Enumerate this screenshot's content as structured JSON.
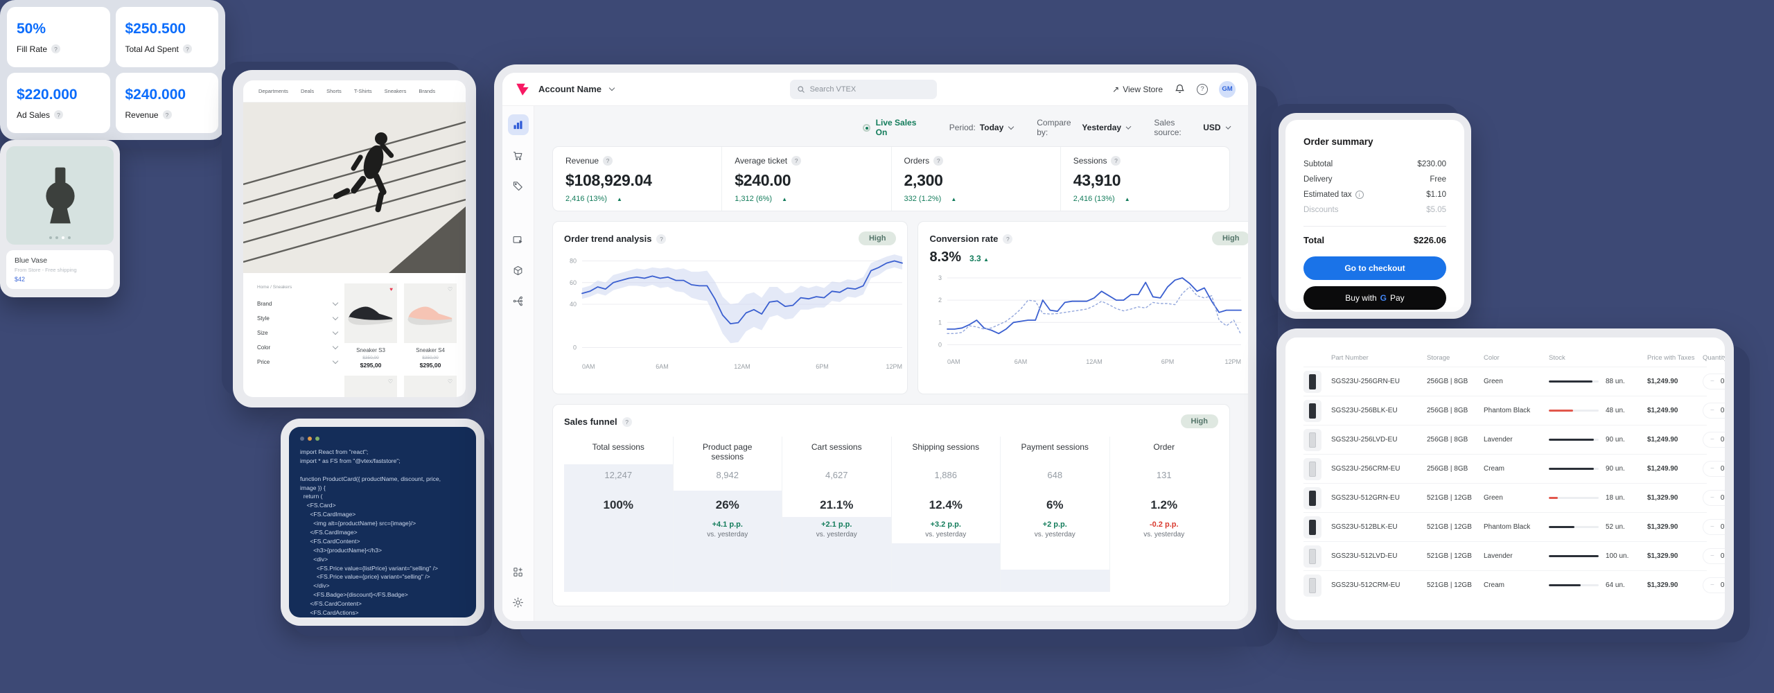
{
  "colors": {
    "background": "#3d4975",
    "accent_blue": "#2f5bd7",
    "chart_blue": "#3a5fd0",
    "band_blue": "#c9d4ef",
    "green": "#137c5b",
    "red": "#d93a2f",
    "brand_pink": "#F71963",
    "ad_blue": "#0b6cfb",
    "checkout_blue": "#1a73e8"
  },
  "storefront_tablet": {
    "nav": [
      "Departments",
      "Deals",
      "Shorts",
      "T-Shirts",
      "Sneakers",
      "Brands"
    ],
    "breadcrumb": "Home / Sneakers",
    "filters": [
      "Brand",
      "Style",
      "Size",
      "Color",
      "Price"
    ],
    "products": [
      {
        "name": "Sneaker S3",
        "list_price": "$350,00",
        "price": "$295,00",
        "shoe_color": "#26282d",
        "liked": true
      },
      {
        "name": "Sneaker S4",
        "list_price": "$350,00",
        "price": "$295,00",
        "shoe_color": "#f6c4b4",
        "liked": false
      },
      {
        "name": "",
        "list_price": "",
        "price": "",
        "shoe_color": "#f4f4f1",
        "liked": false
      },
      {
        "name": "",
        "list_price": "",
        "price": "",
        "shoe_color": "#c6c6c4",
        "liked": false
      }
    ]
  },
  "ad_metrics": {
    "cards": [
      {
        "value": "50%",
        "label": "Fill Rate"
      },
      {
        "value": "$250.500",
        "label": "Total Ad Spent"
      },
      {
        "value": "$220.000",
        "label": "Ad Sales"
      },
      {
        "value": "$240.000",
        "label": "Revenue"
      }
    ]
  },
  "code_panel": {
    "lines": [
      "import React from \"react\";",
      "import * as FS from \"@vtex/faststore\";",
      "",
      "function ProductCard({ productName, discount, price,",
      "image }) {",
      "  return (",
      "    <FS.Card>",
      "      <FS.CardImage>",
      "        <img alt={productName} src={image}/>",
      "      </FS.CardImage>",
      "      <FS.CardContent>",
      "        <h3>{productName}</h3>",
      "        <div>",
      "          <FS.Price value={listPrice} variant=\"selling\" />",
      "          <FS.Price value={price} variant=\"selling\" />",
      "        </div>",
      "        <FS.Badge>{discount}</FS.Badge>",
      "      </FS.CardContent>",
      "      <FS.CardActions>"
    ]
  },
  "dashboard": {
    "topbar": {
      "account_name": "Account Name",
      "search_placeholder": "Search VTEX",
      "view_store": "View Store",
      "view_store_arrow": "↗",
      "avatar": "GM"
    },
    "controls": {
      "live": "Live Sales On",
      "period_label": "Period:",
      "period": "Today",
      "compare_label": "Compare by:",
      "compare": "Yesterday",
      "source_label": "Sales source:",
      "source": "USD"
    },
    "metrics": [
      {
        "label": "Revenue",
        "value": "$108,929.04",
        "delta": "2,416 (13%)"
      },
      {
        "label": "Average ticket",
        "value": "$240.00",
        "delta": "1,312 (6%)"
      },
      {
        "label": "Orders",
        "value": "2,300",
        "delta": "332 (1.2%)"
      },
      {
        "label": "Sessions",
        "value": "43,910",
        "delta": "2,416 (13%)"
      }
    ],
    "sidebar_icons": [
      "analytics",
      "orders-cart",
      "promotions-tag",
      "storefront",
      "catalog-box",
      "integrations",
      "apps",
      "settings"
    ],
    "funnel": {
      "title": "Sales funnel",
      "badge": "High",
      "columns": [
        {
          "header": "Total sessions",
          "value": "12,247",
          "pct": "100%",
          "delta": "",
          "note": "",
          "dir": ""
        },
        {
          "header": "Product page sessions",
          "value": "8,942",
          "pct": "26%",
          "delta": "+4.1 p.p.",
          "note": "vs. yesterday",
          "dir": "up"
        },
        {
          "header": "Cart sessions",
          "value": "4,627",
          "pct": "21.1%",
          "delta": "+2.1 p.p.",
          "note": "vs. yesterday",
          "dir": "up"
        },
        {
          "header": "Shipping sessions",
          "value": "1,886",
          "pct": "12.4%",
          "delta": "+3.2 p.p.",
          "note": "vs. yesterday",
          "dir": "up"
        },
        {
          "header": "Payment sessions",
          "value": "648",
          "pct": "6%",
          "delta": "+2 p.p.",
          "note": "vs. yesterday",
          "dir": "up"
        },
        {
          "header": "Order",
          "value": "131",
          "pct": "1.2%",
          "delta": "-0.2 p.p.",
          "note": "vs. yesterday",
          "dir": "down"
        }
      ]
    }
  },
  "chart_data": [
    {
      "type": "line",
      "title": "Order trend analysis",
      "badge": "High",
      "x_ticks": [
        "0AM",
        "6AM",
        "12AM",
        "6PM",
        "12PM"
      ],
      "y_ticks": [
        0,
        40,
        60,
        80
      ],
      "ylim": [
        -8,
        88
      ],
      "grid": true,
      "legend": "none",
      "series": [
        {
          "name": "orders",
          "values": [
            50,
            52,
            56,
            54,
            60,
            62,
            64,
            65,
            64,
            66,
            64,
            65,
            62,
            62,
            58,
            57,
            57,
            45,
            30,
            22,
            23,
            32,
            35,
            31,
            42,
            43,
            38,
            39,
            46,
            45,
            47,
            46,
            52,
            51,
            55,
            54,
            57,
            71,
            74,
            78,
            80,
            78
          ],
          "band_delta": [
            5,
            5,
            6,
            6,
            7,
            7,
            7,
            8,
            8,
            8,
            9,
            9,
            10,
            11,
            12,
            13,
            14,
            16,
            17,
            18,
            18,
            17,
            16,
            15,
            14,
            13,
            12,
            12,
            11,
            10,
            10,
            9,
            9,
            9,
            8,
            8,
            8,
            7,
            7,
            6,
            6,
            6
          ]
        }
      ]
    },
    {
      "type": "line",
      "title": "Conversion rate",
      "value": "8.3%",
      "delta": "3.3",
      "badge": "High",
      "x_ticks": [
        "0AM",
        "6AM",
        "12AM",
        "6PM",
        "12PM"
      ],
      "y_ticks": [
        0,
        1,
        2,
        3
      ],
      "ylim": [
        -0.3,
        3.25
      ],
      "grid": true,
      "legend": "none",
      "series": [
        {
          "name": "today",
          "style": "solid",
          "values": [
            0.7,
            0.7,
            0.75,
            0.9,
            1.1,
            0.75,
            0.65,
            0.5,
            0.7,
            1.0,
            1.05,
            1.1,
            1.1,
            2.0,
            1.55,
            1.5,
            1.9,
            1.95,
            1.95,
            1.95,
            2.1,
            2.4,
            2.2,
            2.0,
            2.0,
            2.25,
            2.25,
            2.8,
            2.15,
            2.1,
            2.6,
            2.9,
            3.0,
            2.75,
            2.4,
            2.55,
            1.95,
            1.45,
            1.55,
            1.55,
            1.55
          ]
        },
        {
          "name": "yesterday",
          "style": "dotted",
          "values": [
            0.5,
            0.5,
            0.55,
            0.85,
            0.8,
            0.7,
            0.75,
            0.9,
            1.05,
            1.3,
            1.6,
            2.0,
            1.95,
            1.4,
            1.38,
            1.4,
            1.45,
            1.5,
            1.55,
            1.6,
            1.75,
            1.95,
            1.8,
            1.62,
            1.52,
            1.6,
            1.7,
            1.65,
            1.9,
            1.85,
            1.85,
            1.8,
            2.3,
            2.6,
            2.2,
            2.1,
            2.2,
            1.1,
            0.85,
            1.1,
            0.45
          ]
        }
      ]
    }
  ],
  "order_summary": {
    "title": "Order summary",
    "rows": [
      {
        "label": "Subtotal",
        "value": "$230.00",
        "info": false,
        "muted": false
      },
      {
        "label": "Delivery",
        "value": "Free",
        "info": false,
        "muted": false
      },
      {
        "label": "Estimated tax",
        "value": "$1.10",
        "info": true,
        "muted": false
      },
      {
        "label": "Discounts",
        "value": "$5.05",
        "info": false,
        "muted": true
      }
    ],
    "total_label": "Total",
    "total": "$226.06",
    "checkout_label": "Go to checkout",
    "gpay_prefix": "Buy with",
    "gpay_g": "G",
    "gpay_pay": "Pay"
  },
  "vase_card": {
    "name": "Blue Vase",
    "subtitle": "From Store - Free shipping",
    "price": "$42",
    "dots": 4,
    "active_dot": 2
  },
  "parts_table": {
    "headers": [
      "Part Number",
      "Storage",
      "Color",
      "Stock",
      "Price with Taxes",
      "Quantity"
    ],
    "rows": [
      {
        "part": "SGS23U-256GRN-EU",
        "storage": "256GB | 8GB",
        "color": "Green",
        "stock": "88 un.",
        "stock_pct": 88,
        "low": false,
        "price": "$1,249.90",
        "qty": "0",
        "thumb": "dark"
      },
      {
        "part": "SGS23U-256BLK-EU",
        "storage": "256GB | 8GB",
        "color": "Phantom Black",
        "stock": "48 un.",
        "stock_pct": 48,
        "low": true,
        "price": "$1,249.90",
        "qty": "0",
        "thumb": "dark"
      },
      {
        "part": "SGS23U-256LVD-EU",
        "storage": "256GB | 8GB",
        "color": "Lavender",
        "stock": "90 un.",
        "stock_pct": 90,
        "low": false,
        "price": "$1,249.90",
        "qty": "0",
        "thumb": "light"
      },
      {
        "part": "SGS23U-256CRM-EU",
        "storage": "256GB | 8GB",
        "color": "Cream",
        "stock": "90 un.",
        "stock_pct": 90,
        "low": false,
        "price": "$1,249.90",
        "qty": "0",
        "thumb": "light"
      },
      {
        "part": "SGS23U-512GRN-EU",
        "storage": "521GB | 12GB",
        "color": "Green",
        "stock": "18 un.",
        "stock_pct": 18,
        "low": true,
        "price": "$1,329.90",
        "qty": "0",
        "thumb": "dark"
      },
      {
        "part": "SGS23U-512BLK-EU",
        "storage": "521GB | 12GB",
        "color": "Phantom Black",
        "stock": "52 un.",
        "stock_pct": 52,
        "low": false,
        "price": "$1,329.90",
        "qty": "0",
        "thumb": "dark"
      },
      {
        "part": "SGS23U-512LVD-EU",
        "storage": "521GB | 12GB",
        "color": "Lavender",
        "stock": "100 un.",
        "stock_pct": 100,
        "low": false,
        "price": "$1,329.90",
        "qty": "0",
        "thumb": "light"
      },
      {
        "part": "SGS23U-512CRM-EU",
        "storage": "521GB | 12GB",
        "color": "Cream",
        "stock": "64 un.",
        "stock_pct": 64,
        "low": false,
        "price": "$1,329.90",
        "qty": "0",
        "thumb": "light"
      }
    ]
  }
}
